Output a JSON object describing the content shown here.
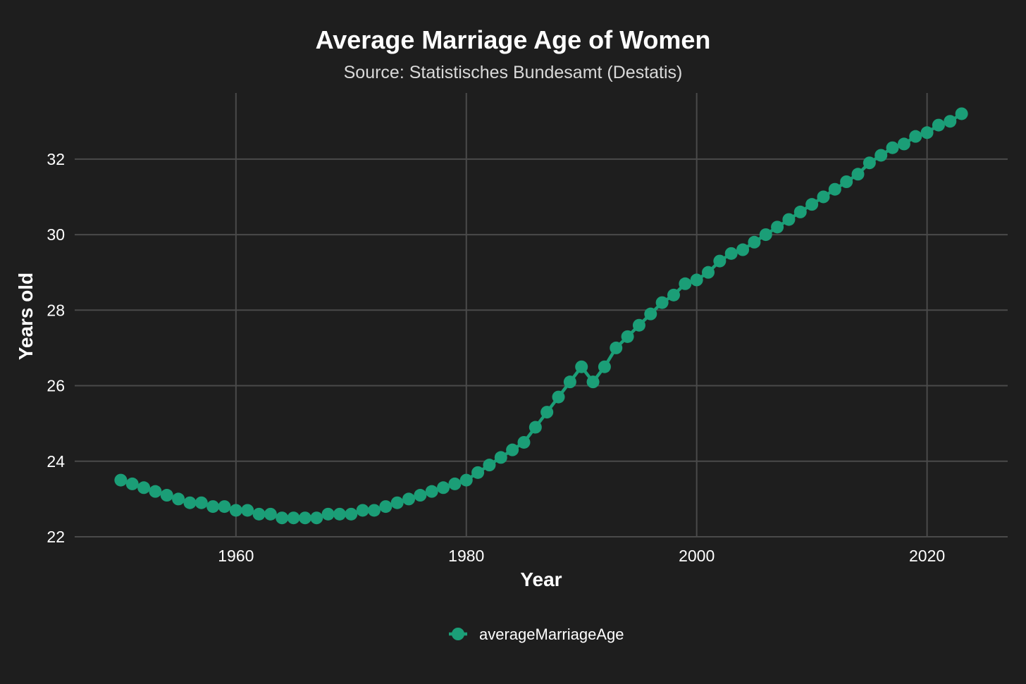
{
  "chart_data": {
    "type": "line",
    "title": "Average Marriage Age of Women",
    "subtitle": "Source: Statistisches Bundesamt (Destatis)",
    "xlabel": "Year",
    "ylabel": "Years old",
    "xlim": [
      1946,
      2027
    ],
    "ylim": [
      22,
      33.75
    ],
    "xticks": [
      1960,
      1980,
      2000,
      2020
    ],
    "yticks": [
      22,
      24,
      26,
      28,
      30,
      32
    ],
    "grid": true,
    "legend_position": "bottom",
    "series": [
      {
        "name": "averageMarriageAge",
        "color": "#1b9e77",
        "x": [
          1950,
          1951,
          1952,
          1953,
          1954,
          1955,
          1956,
          1957,
          1958,
          1959,
          1960,
          1961,
          1962,
          1963,
          1964,
          1965,
          1966,
          1967,
          1968,
          1969,
          1970,
          1971,
          1972,
          1973,
          1974,
          1975,
          1976,
          1977,
          1978,
          1979,
          1980,
          1981,
          1982,
          1983,
          1984,
          1985,
          1986,
          1987,
          1988,
          1989,
          1990,
          1991,
          1992,
          1993,
          1994,
          1995,
          1996,
          1997,
          1998,
          1999,
          2000,
          2001,
          2002,
          2003,
          2004,
          2005,
          2006,
          2007,
          2008,
          2009,
          2010,
          2011,
          2012,
          2013,
          2014,
          2015,
          2016,
          2017,
          2018,
          2019,
          2020,
          2021,
          2022,
          2023
        ],
        "values": [
          23.5,
          23.4,
          23.3,
          23.2,
          23.1,
          23.0,
          22.9,
          22.9,
          22.8,
          22.8,
          22.7,
          22.7,
          22.6,
          22.6,
          22.5,
          22.5,
          22.5,
          22.5,
          22.6,
          22.6,
          22.6,
          22.7,
          22.7,
          22.8,
          22.9,
          23.0,
          23.1,
          23.2,
          23.3,
          23.4,
          23.5,
          23.7,
          23.9,
          24.1,
          24.3,
          24.5,
          24.9,
          25.3,
          25.7,
          26.1,
          26.5,
          26.1,
          26.5,
          27.0,
          27.3,
          27.6,
          27.9,
          28.2,
          28.4,
          28.7,
          28.8,
          29.0,
          29.3,
          29.5,
          29.6,
          29.8,
          30.0,
          30.2,
          30.4,
          30.6,
          30.8,
          31.0,
          31.2,
          31.4,
          31.6,
          31.9,
          32.1,
          32.3,
          32.4,
          32.6,
          32.7,
          32.9,
          33.0,
          33.2
        ]
      }
    ]
  }
}
